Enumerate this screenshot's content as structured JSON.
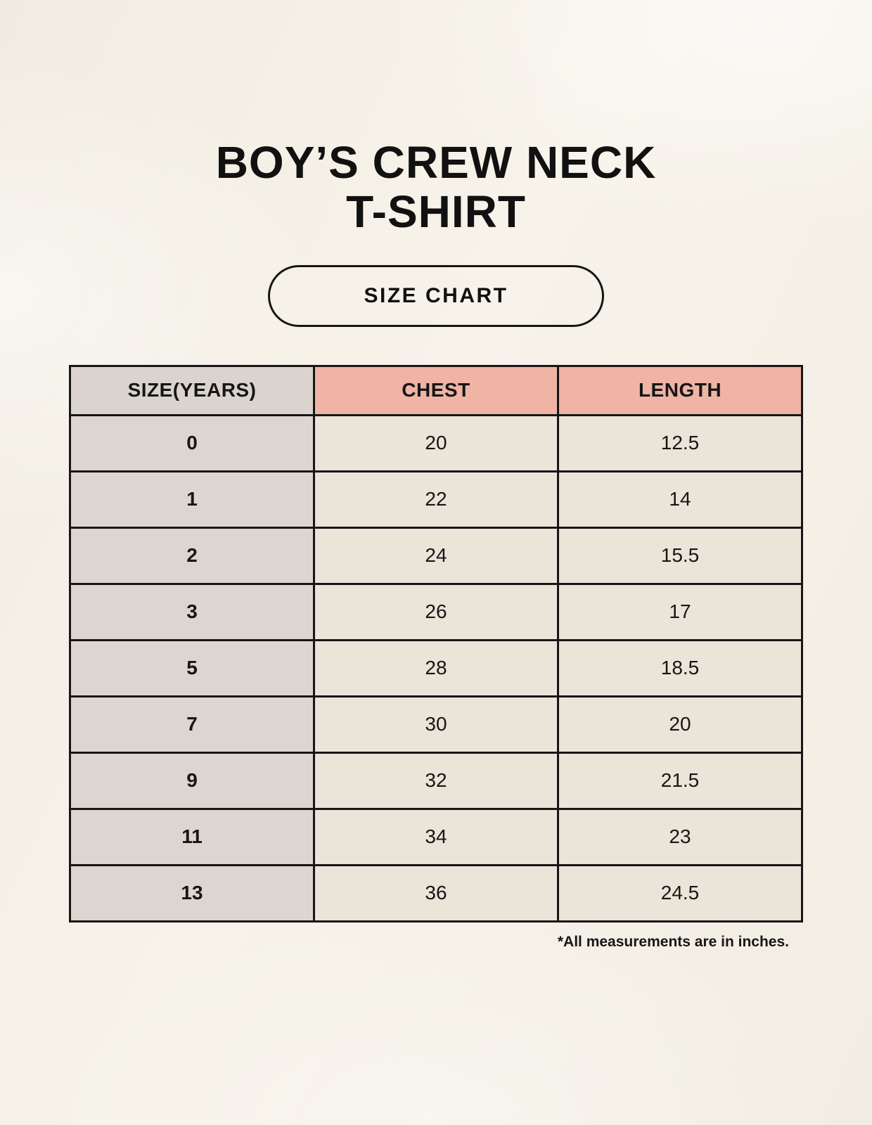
{
  "page": {
    "title_line1": "BOY’S CREW NECK",
    "title_line2": "T-SHIRT",
    "badge_label": "SIZE CHART",
    "note": "*All measurements are in inches."
  },
  "chart_data": {
    "type": "table",
    "title": "Boy’s Crew Neck T-Shirt Size Chart",
    "unit": "inches",
    "columns": [
      "SIZE(YEARS)",
      "CHEST",
      "LENGTH"
    ],
    "rows": [
      [
        "0",
        "20",
        "12.5"
      ],
      [
        "1",
        "22",
        "14"
      ],
      [
        "2",
        "24",
        "15.5"
      ],
      [
        "3",
        "26",
        "17"
      ],
      [
        "5",
        "28",
        "18.5"
      ],
      [
        "7",
        "30",
        "20"
      ],
      [
        "9",
        "32",
        "21.5"
      ],
      [
        "11",
        "34",
        "23"
      ],
      [
        "13",
        "36",
        "24.5"
      ]
    ]
  },
  "colors": {
    "background": "#f5f1e8",
    "header_size_bg": "#dbd4ce",
    "header_measure_bg": "#f0b4a4",
    "row_size_bg": "#ddd6d0",
    "row_data_bg": "#eae4d9",
    "border": "#161616",
    "text": "#161616"
  }
}
